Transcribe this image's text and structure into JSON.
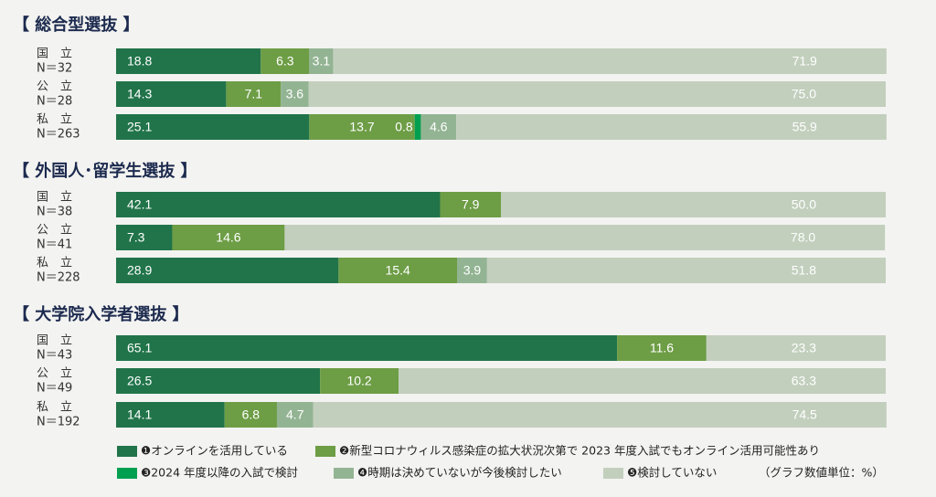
{
  "chart_data": [
    {
      "type": "bar",
      "title": "【 総合型選抜 】",
      "categories": [
        "国　立",
        "公　立",
        "私　立"
      ],
      "sample_sizes": [
        "N＝32",
        "N＝28",
        "N＝263"
      ],
      "xlim": [
        0,
        100
      ],
      "series": [
        {
          "name": "❶オンラインを活用している",
          "color": "#21744a",
          "values": [
            18.8,
            14.3,
            25.1
          ],
          "value_labels": [
            "18.8",
            "14.3",
            "25.1"
          ]
        },
        {
          "name": "❷新型コロナウィルス感染症の拡大状況次第で 2023 年度入試でもオンライン活用可能性あり",
          "color": "#6d9d45",
          "values": [
            6.3,
            7.1,
            13.7
          ],
          "value_labels": [
            "6.3",
            "7.1",
            "13.7"
          ]
        },
        {
          "name": "❸2024 年度以降の入試で検討",
          "color": "#00a050",
          "values": [
            null,
            null,
            0.8
          ],
          "value_labels": [
            null,
            null,
            "0.8"
          ]
        },
        {
          "name": "❹時期は決めていないが今後検討したい",
          "color": "#93b493",
          "values": [
            3.1,
            3.6,
            4.6
          ],
          "value_labels": [
            "3.1",
            "3.6",
            "4.6"
          ]
        },
        {
          "name": "❺検討していない",
          "color": "#c2cfbd",
          "values": [
            71.9,
            75,
            55.9
          ],
          "value_labels": [
            "71.9",
            "75.0",
            "55.9"
          ]
        }
      ]
    },
    {
      "type": "bar",
      "title": "【 外国人･留学生選抜 】",
      "categories": [
        "国　立",
        "公　立",
        "私　立"
      ],
      "sample_sizes": [
        "N＝38",
        "N＝41",
        "N＝228"
      ],
      "xlim": [
        0,
        100
      ],
      "series": [
        {
          "name": "❶オンラインを活用している",
          "color": "#21744a",
          "values": [
            42.1,
            7.3,
            28.9
          ],
          "value_labels": [
            "42.1",
            "7.3",
            "28.9"
          ]
        },
        {
          "name": "❷新型コロナウィルス感染症の拡大状況次第で 2023 年度入試でもオンライン活用可能性あり",
          "color": "#6d9d45",
          "values": [
            7.9,
            14.6,
            15.4
          ],
          "value_labels": [
            "7.9",
            "14.6",
            "15.4"
          ]
        },
        {
          "name": "❸2024 年度以降の入試で検討",
          "color": "#00a050",
          "values": [
            null,
            null,
            null
          ],
          "value_labels": [
            null,
            null,
            null
          ]
        },
        {
          "name": "❹時期は決めていないが今後検討したい",
          "color": "#93b493",
          "values": [
            null,
            null,
            3.9
          ],
          "value_labels": [
            null,
            null,
            "3.9"
          ]
        },
        {
          "name": "❺検討していない",
          "color": "#c2cfbd",
          "values": [
            50,
            78,
            51.8
          ],
          "value_labels": [
            "50.0",
            "78.0",
            "51.8"
          ]
        }
      ]
    },
    {
      "type": "bar",
      "title": "【 大学院入学者選抜 】",
      "categories": [
        "国　立",
        "公　立",
        "私　立"
      ],
      "sample_sizes": [
        "N＝43",
        "N＝49",
        "N＝192"
      ],
      "xlim": [
        0,
        100
      ],
      "series": [
        {
          "name": "❶オンラインを活用している",
          "color": "#21744a",
          "values": [
            65.1,
            26.5,
            14.1
          ],
          "value_labels": [
            "65.1",
            "26.5",
            "14.1"
          ]
        },
        {
          "name": "❷新型コロナウィルス感染症の拡大状況次第で 2023 年度入試でもオンライン活用可能性あり",
          "color": "#6d9d45",
          "values": [
            11.6,
            10.2,
            6.8
          ],
          "value_labels": [
            "11.6",
            "10.2",
            "6.8"
          ]
        },
        {
          "name": "❸2024 年度以降の入試で検討",
          "color": "#00a050",
          "values": [
            null,
            null,
            null
          ],
          "value_labels": [
            null,
            null,
            null
          ]
        },
        {
          "name": "❹時期は決めていないが今後検討したい",
          "color": "#93b493",
          "values": [
            null,
            null,
            4.7
          ],
          "value_labels": [
            null,
            null,
            "4.7"
          ]
        },
        {
          "name": "❺検討していない",
          "color": "#c2cfbd",
          "values": [
            23.3,
            63.3,
            74.5
          ],
          "value_labels": [
            "23.3",
            "63.3",
            "74.5"
          ]
        }
      ]
    }
  ],
  "note": "（グラフ数値単位：%）"
}
